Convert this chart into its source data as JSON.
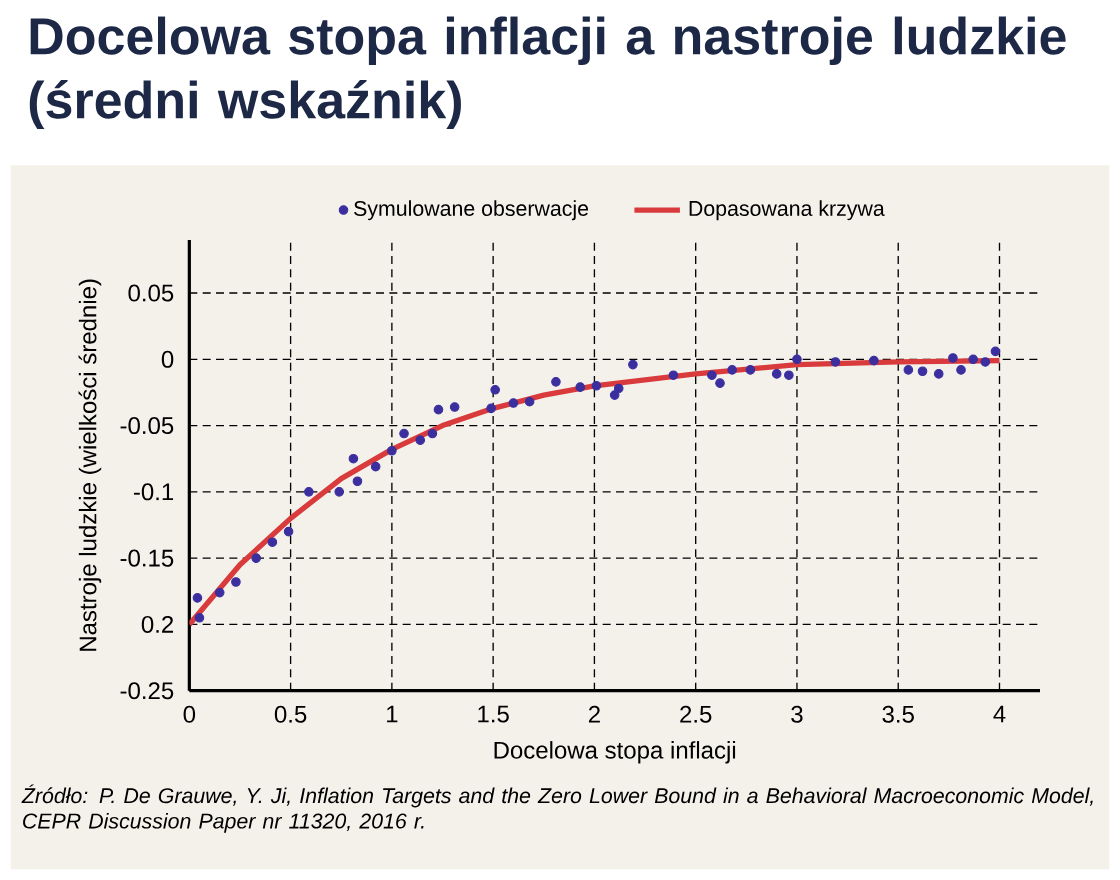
{
  "chart_data": {
    "type": "scatter",
    "title": "Docelowa stopa inflacji a nastroje ludzkie (średni wskaźnik)",
    "xlabel": "Docelowa stopa inflacji",
    "ylabel": "Nastroje ludzkie (wielkości średnie)",
    "annotations": [
      "Źródło: P. De Grauwe, Y. Ji, Inflation Targets and the Zero Lower Bound in a Behavioral Macroeconomic Model, CEPR Discussion Paper nr 11320, 2016 r."
    ],
    "xlim": [
      0,
      4.2
    ],
    "ylim": [
      -0.25,
      0.09
    ],
    "xticks": [
      0,
      0.5,
      1,
      1.5,
      2,
      2.5,
      3,
      3.5,
      4
    ],
    "yticks": [
      0.05,
      0,
      -0.05,
      -0.1,
      -0.15,
      {
        "value": -0.2,
        "label": "0.2"
      },
      -0.25
    ],
    "grid": true,
    "legend": "top",
    "series": [
      {
        "name": "Symulowane obserwacje",
        "marker": "circle",
        "color": "#3b2e9e",
        "x": [
          0.04,
          0.05,
          0.15,
          0.23,
          0.33,
          0.41,
          0.49,
          0.59,
          0.74,
          0.81,
          0.83,
          0.92,
          1.0,
          1.06,
          1.14,
          1.2,
          1.23,
          1.31,
          1.49,
          1.51,
          1.6,
          1.68,
          1.81,
          1.93,
          2.01,
          2.1,
          2.12,
          2.19,
          2.39,
          2.58,
          2.62,
          2.68,
          2.77,
          2.9,
          2.96,
          3.0,
          3.19,
          3.38,
          3.55,
          3.62,
          3.7,
          3.77,
          3.81,
          3.87,
          3.93,
          3.98
        ],
        "values": [
          -0.18,
          -0.195,
          -0.176,
          -0.168,
          -0.15,
          -0.138,
          -0.13,
          -0.1,
          -0.1,
          -0.075,
          -0.092,
          -0.081,
          -0.069,
          -0.056,
          -0.061,
          -0.056,
          -0.038,
          -0.036,
          -0.037,
          -0.023,
          -0.033,
          -0.032,
          -0.017,
          -0.021,
          -0.02,
          -0.027,
          -0.022,
          -0.004,
          -0.012,
          -0.012,
          -0.018,
          -0.008,
          -0.008,
          -0.011,
          -0.012,
          0.0,
          -0.002,
          -0.001,
          -0.008,
          -0.009,
          -0.011,
          0.001,
          -0.008,
          0.0,
          -0.002,
          0.006
        ]
      },
      {
        "name": "Dopasowana krzywa",
        "type": "line",
        "marker": "none",
        "line_style": "solid",
        "color": "#d93a3c",
        "x": [
          0,
          0.25,
          0.5,
          0.75,
          1,
          1.25,
          1.5,
          1.75,
          2,
          2.5,
          3,
          3.5,
          4
        ],
        "values": [
          -0.2,
          -0.155,
          -0.12,
          -0.09,
          -0.068,
          -0.05,
          -0.037,
          -0.027,
          -0.02,
          -0.011,
          -0.004,
          -0.002,
          -0.001
        ]
      }
    ]
  }
}
